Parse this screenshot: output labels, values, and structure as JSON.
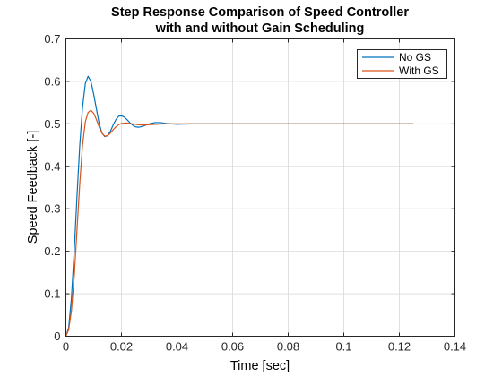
{
  "chart_data": {
    "type": "line",
    "title": [
      "Step Response Comparison of Speed Controller",
      "with and without Gain Scheduling"
    ],
    "xlabel": "Time [sec]",
    "ylabel": "Speed Feedback [-]",
    "xlim": [
      0,
      0.14
    ],
    "ylim": [
      0,
      0.7
    ],
    "xticks": [
      0,
      0.02,
      0.04,
      0.06,
      0.08,
      0.1,
      0.12,
      0.14
    ],
    "xticklabels": [
      "0",
      "0.02",
      "0.04",
      "0.06",
      "0.08",
      "0.1",
      "0.12",
      "0.14"
    ],
    "yticks": [
      0,
      0.1,
      0.2,
      0.3,
      0.4,
      0.5,
      0.6,
      0.7
    ],
    "yticklabels": [
      "0",
      "0.1",
      "0.2",
      "0.3",
      "0.4",
      "0.5",
      "0.6",
      "0.7"
    ],
    "grid": true,
    "legend_position": "top-right",
    "series": [
      {
        "name": "No GS",
        "color": "#0072BD",
        "x": [
          0,
          0.001,
          0.002,
          0.003,
          0.004,
          0.005,
          0.006,
          0.007,
          0.008,
          0.009,
          0.01,
          0.011,
          0.012,
          0.013,
          0.014,
          0.015,
          0.016,
          0.017,
          0.018,
          0.019,
          0.02,
          0.021,
          0.022,
          0.023,
          0.024,
          0.025,
          0.026,
          0.027,
          0.028,
          0.03,
          0.032,
          0.034,
          0.036,
          0.038,
          0.04,
          0.045,
          0.05,
          0.06,
          0.08,
          0.1,
          0.125
        ],
        "y": [
          0,
          0.02,
          0.09,
          0.2,
          0.33,
          0.45,
          0.54,
          0.595,
          0.612,
          0.6,
          0.57,
          0.535,
          0.5,
          0.478,
          0.47,
          0.472,
          0.482,
          0.497,
          0.51,
          0.518,
          0.519,
          0.516,
          0.51,
          0.503,
          0.497,
          0.493,
          0.492,
          0.493,
          0.495,
          0.5,
          0.503,
          0.503,
          0.501,
          0.5,
          0.499,
          0.5,
          0.5,
          0.5,
          0.5,
          0.5,
          0.5
        ]
      },
      {
        "name": "With GS",
        "color": "#D95319",
        "x": [
          0,
          0.001,
          0.002,
          0.003,
          0.004,
          0.005,
          0.006,
          0.007,
          0.008,
          0.009,
          0.01,
          0.011,
          0.012,
          0.013,
          0.014,
          0.015,
          0.016,
          0.017,
          0.018,
          0.019,
          0.02,
          0.022,
          0.024,
          0.026,
          0.028,
          0.03,
          0.035,
          0.04,
          0.05,
          0.06,
          0.08,
          0.1,
          0.125
        ],
        "y": [
          0,
          0.015,
          0.06,
          0.14,
          0.25,
          0.36,
          0.45,
          0.505,
          0.527,
          0.532,
          0.525,
          0.51,
          0.492,
          0.478,
          0.471,
          0.472,
          0.478,
          0.486,
          0.493,
          0.498,
          0.501,
          0.502,
          0.5,
          0.498,
          0.497,
          0.498,
          0.5,
          0.5,
          0.5,
          0.5,
          0.5,
          0.5,
          0.5
        ]
      }
    ]
  }
}
